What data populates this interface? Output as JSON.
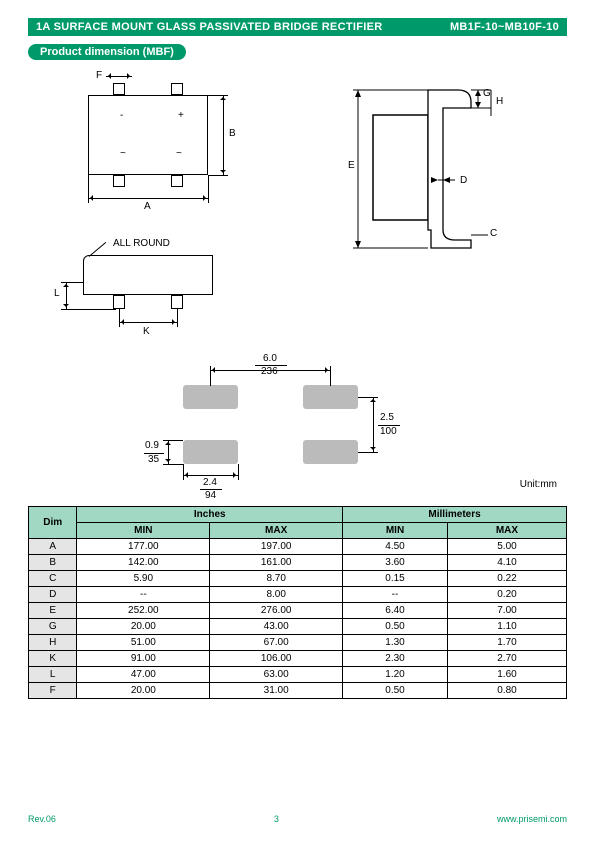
{
  "colors": {
    "accent": "#009a6a",
    "table_header_bg": "#a0d8c4",
    "table_alt_bg": "#e5e5e5",
    "pad_fill": "#bbbbbb",
    "line": "#000000",
    "background": "#ffffff"
  },
  "typography": {
    "title_fontsize": 11,
    "body_fontsize": 10,
    "footer_fontsize": 9,
    "font_family": "Arial"
  },
  "header": {
    "title": "1A SURFACE MOUNT GLASS PASSIVATED BRIDGE RECTIFIER",
    "part_range": "MB1F-10~MB10F-10"
  },
  "subheader": "Product dimension (MBF)",
  "diagram_labels": {
    "A": "A",
    "B": "B",
    "C": "C",
    "D": "D",
    "E": "E",
    "F": "F",
    "G": "G",
    "H": "H",
    "K": "K",
    "L": "L",
    "all_round": "ALL ROUND",
    "plus": "+",
    "minus": "-",
    "tilde": "~",
    "pad_w_val": "6.0",
    "pad_w_mil": "236",
    "pad_h_val": "2.5",
    "pad_h_mil": "100",
    "pad_t_val": "0.9",
    "pad_t_mil": "35",
    "pad_len_val": "2.4",
    "pad_len_mil": "94"
  },
  "unit": "Unit:mm",
  "table": {
    "header_dim": "Dim",
    "header_inches": "Inches",
    "header_mm": "Millimeters",
    "header_min": "MIN",
    "header_max": "MAX",
    "rows": [
      {
        "dim": "A",
        "in_min": "177.00",
        "in_max": "197.00",
        "mm_min": "4.50",
        "mm_max": "5.00"
      },
      {
        "dim": "B",
        "in_min": "142.00",
        "in_max": "161.00",
        "mm_min": "3.60",
        "mm_max": "4.10"
      },
      {
        "dim": "C",
        "in_min": "5.90",
        "in_max": "8.70",
        "mm_min": "0.15",
        "mm_max": "0.22"
      },
      {
        "dim": "D",
        "in_min": "--",
        "in_max": "8.00",
        "mm_min": "--",
        "mm_max": "0.20"
      },
      {
        "dim": "E",
        "in_min": "252.00",
        "in_max": "276.00",
        "mm_min": "6.40",
        "mm_max": "7.00"
      },
      {
        "dim": "G",
        "in_min": "20.00",
        "in_max": "43.00",
        "mm_min": "0.50",
        "mm_max": "1.10"
      },
      {
        "dim": "H",
        "in_min": "51.00",
        "in_max": "67.00",
        "mm_min": "1.30",
        "mm_max": "1.70"
      },
      {
        "dim": "K",
        "in_min": "91.00",
        "in_max": "106.00",
        "mm_min": "2.30",
        "mm_max": "2.70"
      },
      {
        "dim": "L",
        "in_min": "47.00",
        "in_max": "63.00",
        "mm_min": "1.20",
        "mm_max": "1.60"
      },
      {
        "dim": "F",
        "in_min": "20.00",
        "in_max": "31.00",
        "mm_min": "0.50",
        "mm_max": "0.80"
      }
    ]
  },
  "footer": {
    "rev": "Rev.06",
    "page": "3",
    "url": "www.prisemi.com"
  }
}
